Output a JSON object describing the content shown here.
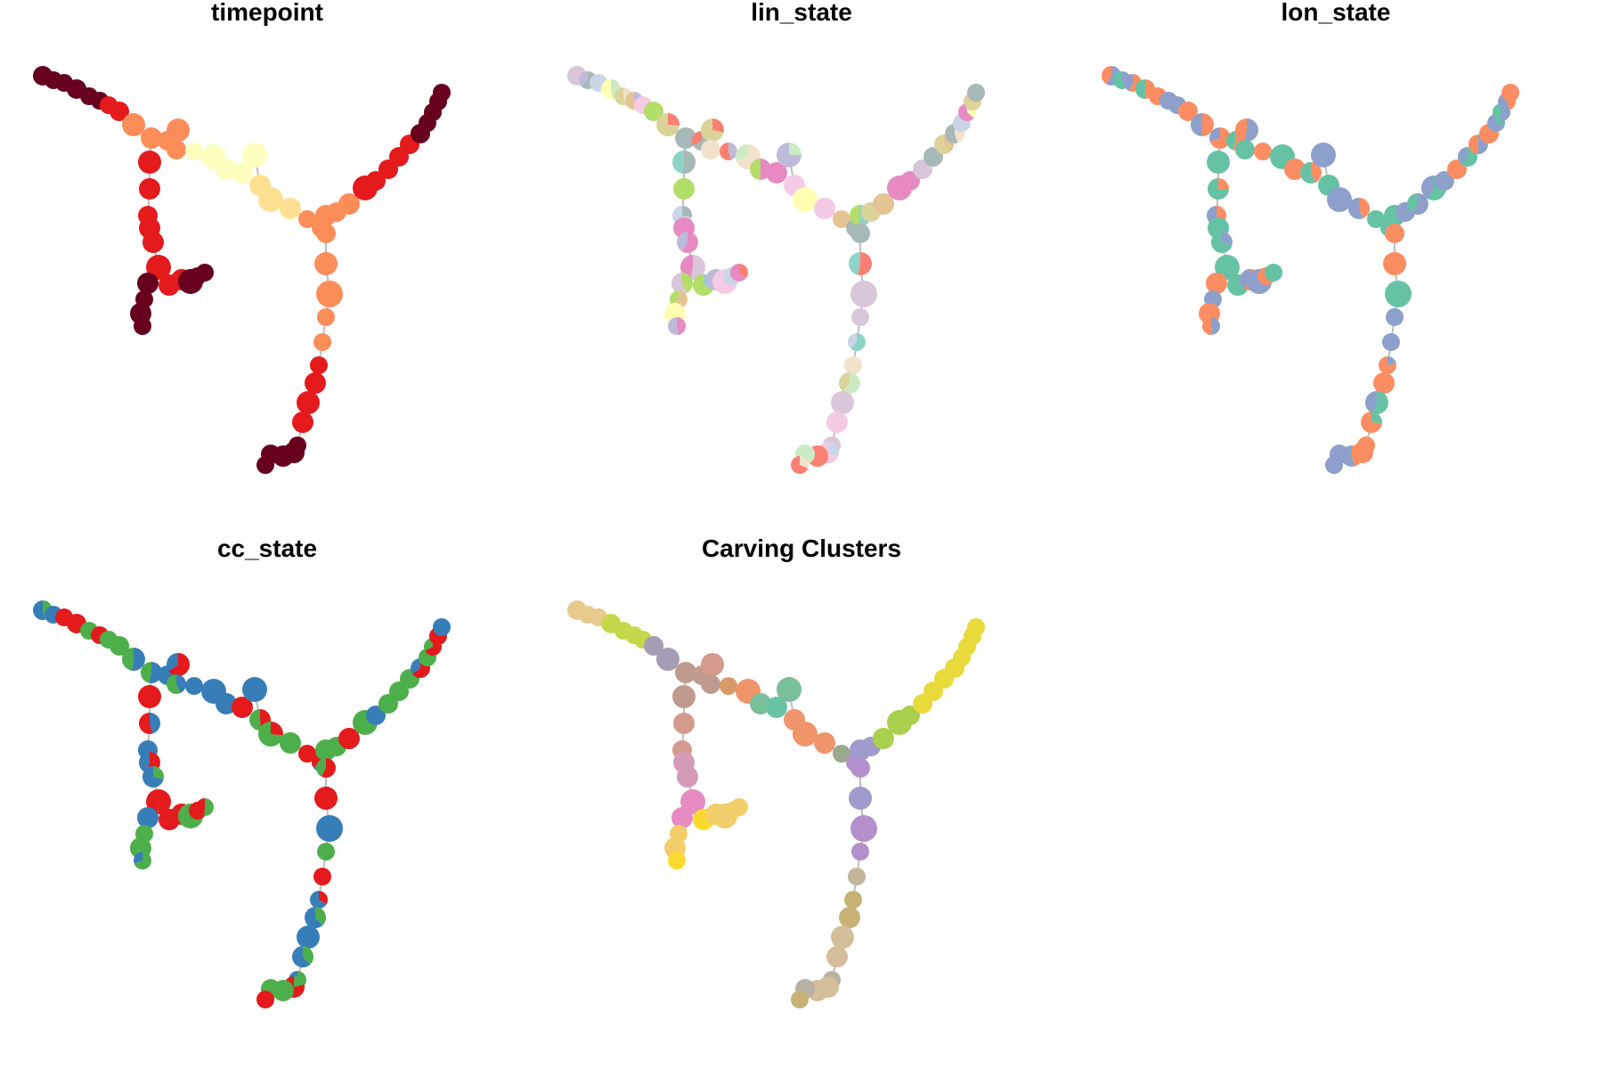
{
  "panels": [
    {
      "title": "timepoint",
      "palette": [
        "#67001F",
        "#B2182B",
        "#E41A1C",
        "#EF3B2C",
        "#FC8D59",
        "#FDB863",
        "#FEE090",
        "#FFFFBF"
      ]
    },
    {
      "title": "lin_state",
      "palette": [
        "#A6B8B7",
        "#F4CAE4",
        "#CBD5E8",
        "#D9C6D9",
        "#CCEBC5",
        "#8DD3C7",
        "#B3DE69",
        "#FFFFB3",
        "#BEBADA",
        "#FB8072",
        "#E5C494",
        "#E78AC3",
        "#DCD39A",
        "#F1E2CC"
      ]
    },
    {
      "title": "lon_state",
      "palette": [
        "#FC8D62",
        "#66C2A5",
        "#8DA0CB"
      ]
    },
    {
      "title": "cc_state",
      "palette": [
        "#E41A1C",
        "#377EB8",
        "#4DAF4A"
      ]
    },
    {
      "title": "Carving Clusters",
      "palette": [
        "#E8C98E",
        "#C5D84B",
        "#A59DB5",
        "#C09A8F",
        "#D49A8E",
        "#D49AB8",
        "#E68CC3",
        "#F2CE6A",
        "#FCD930",
        "#B5A27E",
        "#F0946B",
        "#79BF9A",
        "#68C3A4",
        "#9AA98C",
        "#D99A6A",
        "#9F9BCC",
        "#B38FCB",
        "#8FA0CB",
        "#B49BCC",
        "#C3B79A",
        "#C8B175",
        "#D5BE9A",
        "#B8B0A5",
        "#A9CF4D",
        "#E8DA3B"
      ]
    }
  ]
}
